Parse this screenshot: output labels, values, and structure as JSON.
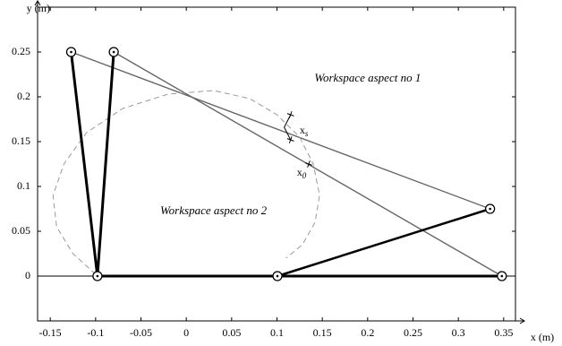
{
  "chart_data": {
    "type": "line",
    "xlabel": "x (m)",
    "ylabel": "y (m)",
    "xlim": [
      -0.164,
      0.363
    ],
    "ylim": [
      -0.05,
      0.3
    ],
    "xticks": [
      -0.15,
      -0.1,
      -0.05,
      0,
      0.05,
      0.1,
      0.15,
      0.2,
      0.25,
      0.3,
      0.35
    ],
    "yticks": [
      0,
      0.05,
      0.1,
      0.15,
      0.2,
      0.25
    ],
    "series": [
      {
        "color": "#666666",
        "width": 1.4,
        "x": [
          -0.127,
          0.335
        ],
        "values": [
          0.25,
          0.075
        ]
      },
      {
        "color": "#666666",
        "width": 1.4,
        "x": [
          -0.08,
          0.348
        ],
        "values": [
          0.25,
          0
        ]
      },
      {
        "color": "#999999",
        "width": 1,
        "dash": true,
        "x": [
          -0.1,
          -0.125,
          -0.143,
          -0.147,
          -0.135,
          -0.11,
          -0.07,
          -0.02,
          0.03,
          0.07,
          0.1,
          0.125,
          0.14,
          0.147,
          0.142,
          0.128,
          0.11
        ],
        "values": [
          0.002,
          0.025,
          0.055,
          0.09,
          0.125,
          0.16,
          0.187,
          0.203,
          0.207,
          0.198,
          0.18,
          0.155,
          0.125,
          0.09,
          0.06,
          0.035,
          0.02
        ]
      },
      {
        "color": "#000000",
        "width": 3,
        "x": [
          -0.127,
          -0.098
        ],
        "values": [
          0.25,
          0
        ]
      },
      {
        "color": "#000000",
        "width": 3,
        "x": [
          -0.08,
          -0.098
        ],
        "values": [
          0.25,
          0
        ]
      },
      {
        "color": "#000000",
        "width": 3,
        "x": [
          -0.098,
          0.348
        ],
        "values": [
          0,
          0
        ]
      },
      {
        "color": "#000000",
        "width": 2.5,
        "x": [
          0.1005,
          0.335
        ],
        "values": [
          0,
          0.075
        ]
      },
      {
        "color": "#000000",
        "width": 1,
        "x": [
          0.115,
          0.108,
          0.115
        ],
        "values": [
          0.18,
          0.166,
          0.152
        ]
      },
      {
        "color": "#000000",
        "marker": "circle",
        "x": [
          -0.127,
          -0.08,
          -0.098,
          0.1005,
          0.348,
          0.335
        ],
        "values": [
          0.25,
          0.25,
          0,
          0,
          0,
          0.075
        ]
      },
      {
        "color": "#000000",
        "marker": "cross",
        "x": [
          0.115,
          0.115,
          0.135
        ],
        "values": [
          0.18,
          0.152,
          0.125
        ]
      }
    ],
    "annotations": [
      {
        "text": "Workspace aspect no 1",
        "x": 0.2,
        "y": 0.22,
        "italic": true
      },
      {
        "text": "Workspace aspect no 2",
        "x": 0.03,
        "y": 0.072,
        "italic": true
      },
      {
        "text": "x",
        "sub": "s",
        "x": 0.125,
        "y": 0.162
      },
      {
        "text": "x",
        "sub": "0",
        "x": 0.122,
        "y": 0.115
      }
    ]
  }
}
